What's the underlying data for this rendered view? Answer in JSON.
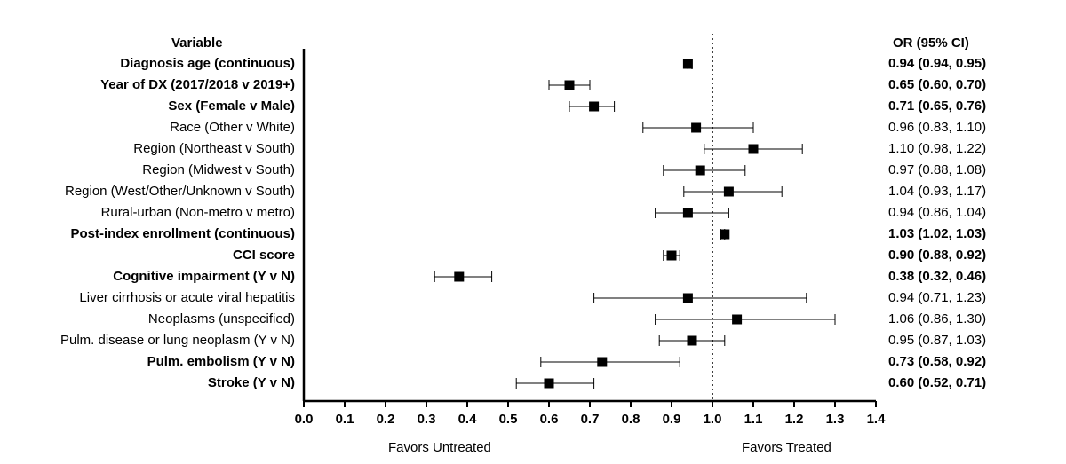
{
  "headers": {
    "variable": "Variable",
    "or_ci": "OR  (95% CI)"
  },
  "footer": {
    "left": "Favors Untreated",
    "right": "Favors Treated"
  },
  "chart_data": {
    "type": "forest",
    "xlim": [
      0.0,
      1.4
    ],
    "x_ticks": [
      "0.0",
      "0.1",
      "0.2",
      "0.3",
      "0.4",
      "0.5",
      "0.6",
      "0.7",
      "0.8",
      "0.9",
      "1.0",
      "1.1",
      "1.2",
      "1.3",
      "1.4"
    ],
    "reference_line": 1.0,
    "rows": [
      {
        "label": "Diagnosis age (continuous)",
        "or": 0.94,
        "lo": 0.94,
        "hi": 0.95,
        "ci_text": "0.94 (0.94, 0.95)",
        "bold": true
      },
      {
        "label": "Year of DX (2017/2018 v 2019+)",
        "or": 0.65,
        "lo": 0.6,
        "hi": 0.7,
        "ci_text": "0.65 (0.60, 0.70)",
        "bold": true
      },
      {
        "label": "Sex (Female v Male)",
        "or": 0.71,
        "lo": 0.65,
        "hi": 0.76,
        "ci_text": "0.71 (0.65, 0.76)",
        "bold": true
      },
      {
        "label": "Race (Other v White)",
        "or": 0.96,
        "lo": 0.83,
        "hi": 1.1,
        "ci_text": "0.96 (0.83, 1.10)",
        "bold": false
      },
      {
        "label": "Region (Northeast v South)",
        "or": 1.1,
        "lo": 0.98,
        "hi": 1.22,
        "ci_text": "1.10 (0.98, 1.22)",
        "bold": false
      },
      {
        "label": "Region (Midwest v South)",
        "or": 0.97,
        "lo": 0.88,
        "hi": 1.08,
        "ci_text": "0.97 (0.88, 1.08)",
        "bold": false
      },
      {
        "label": "Region (West/Other/Unknown v South)",
        "or": 1.04,
        "lo": 0.93,
        "hi": 1.17,
        "ci_text": "1.04 (0.93, 1.17)",
        "bold": false
      },
      {
        "label": "Rural-urban (Non-metro v metro)",
        "or": 0.94,
        "lo": 0.86,
        "hi": 1.04,
        "ci_text": "0.94 (0.86, 1.04)",
        "bold": false
      },
      {
        "label": "Post-index enrollment (continuous)",
        "or": 1.03,
        "lo": 1.02,
        "hi": 1.03,
        "ci_text": "1.03 (1.02, 1.03)",
        "bold": true
      },
      {
        "label": "CCI score",
        "or": 0.9,
        "lo": 0.88,
        "hi": 0.92,
        "ci_text": "0.90 (0.88, 0.92)",
        "bold": true
      },
      {
        "label": "Cognitive impairment (Y v N)",
        "or": 0.38,
        "lo": 0.32,
        "hi": 0.46,
        "ci_text": "0.38 (0.32, 0.46)",
        "bold": true
      },
      {
        "label": "Liver cirrhosis or acute viral hepatitis",
        "or": 0.94,
        "lo": 0.71,
        "hi": 1.23,
        "ci_text": "0.94 (0.71, 1.23)",
        "bold": false
      },
      {
        "label": "Neoplasms (unspecified)",
        "or": 1.06,
        "lo": 0.86,
        "hi": 1.3,
        "ci_text": "1.06 (0.86, 1.30)",
        "bold": false
      },
      {
        "label": "Pulm. disease or lung neoplasm (Y v N)",
        "or": 0.95,
        "lo": 0.87,
        "hi": 1.03,
        "ci_text": "0.95 (0.87, 1.03)",
        "bold": false
      },
      {
        "label": "Pulm. embolism (Y v N)",
        "or": 0.73,
        "lo": 0.58,
        "hi": 0.92,
        "ci_text": "0.73 (0.58, 0.92)",
        "bold": true
      },
      {
        "label": "Stroke (Y v N)",
        "or": 0.6,
        "lo": 0.52,
        "hi": 0.71,
        "ci_text": "0.60 (0.52, 0.71)",
        "bold": true
      }
    ]
  }
}
